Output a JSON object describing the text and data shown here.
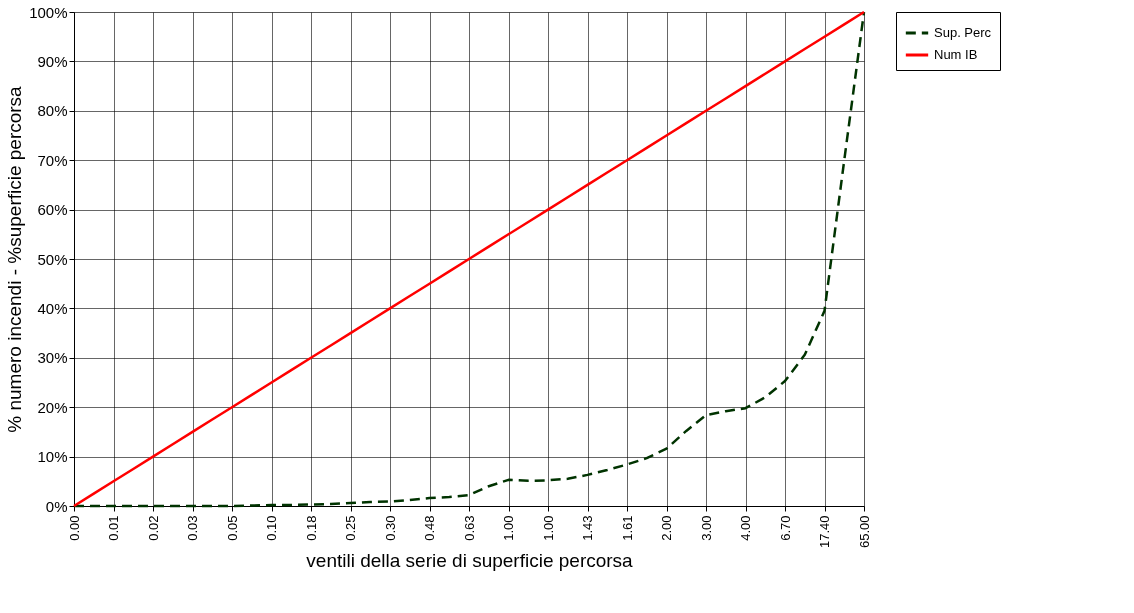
{
  "chart_data": {
    "type": "line",
    "xlabel": "ventili della serie di superficie percorsa",
    "ylabel": "% numero incendi - %superficie percorsa",
    "categories": [
      "0.00",
      null,
      "0.01",
      null,
      "0.02",
      null,
      "0.03",
      null,
      "0.05",
      null,
      "0.10",
      null,
      "0.18",
      null,
      "0.25",
      null,
      "0.30",
      null,
      "0.48",
      null,
      "0.63",
      null,
      "1.00",
      null,
      "1.00",
      null,
      "1.43",
      null,
      "1.61",
      null,
      "2.00",
      null,
      "3.00",
      null,
      "4.00",
      null,
      "6.70",
      null,
      "17.40",
      null,
      "65.00"
    ],
    "series": [
      {
        "name": "Sup. Perc",
        "color": "#003300",
        "line_style": "dashed",
        "values": [
          0,
          0,
          0,
          0,
          0,
          0,
          0,
          0,
          0,
          0.1,
          0.2,
          0.2,
          0.3,
          0.4,
          0.6,
          0.8,
          0.9,
          1.2,
          1.6,
          1.8,
          2.2,
          4,
          5.3,
          5.1,
          5.2,
          5.5,
          6.3,
          7.3,
          8.4,
          9.7,
          11.6,
          15.2,
          18.4,
          19.2,
          19.8,
          22.0,
          25.3,
          30.6,
          39.5,
          70,
          100
        ]
      },
      {
        "name": "Num IB",
        "color": "#ff0000",
        "line_style": "solid",
        "values": [
          0,
          2.5,
          5,
          7.5,
          10,
          12.5,
          15,
          17.5,
          20,
          22.5,
          25,
          27.5,
          30,
          32.5,
          35,
          37.5,
          40,
          42.5,
          45,
          47.5,
          50,
          52.5,
          55,
          57.5,
          60,
          62.5,
          65,
          67.5,
          70,
          72.5,
          75,
          77.5,
          80,
          82.5,
          85,
          87.5,
          90,
          92.5,
          95,
          97.5,
          100
        ]
      }
    ],
    "ylim": [
      0,
      100
    ],
    "yticks": [
      {
        "value": 0,
        "label": "0%"
      },
      {
        "value": 10,
        "label": "10%"
      },
      {
        "value": 20,
        "label": "20%"
      },
      {
        "value": 30,
        "label": "30%"
      },
      {
        "value": 40,
        "label": "40%"
      },
      {
        "value": 50,
        "label": "50%"
      },
      {
        "value": 60,
        "label": "60%"
      },
      {
        "value": 70,
        "label": "70%"
      },
      {
        "value": 80,
        "label": "80%"
      },
      {
        "value": 90,
        "label": "90%"
      },
      {
        "value": 100,
        "label": "100%"
      }
    ],
    "grid": true,
    "legend": "right",
    "marker": "none"
  }
}
